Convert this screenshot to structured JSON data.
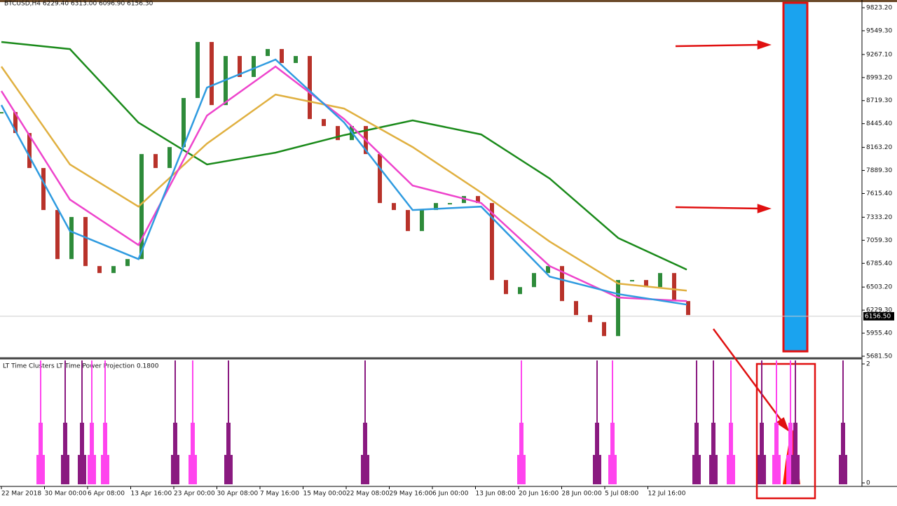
{
  "header": "BTCUSD,H4  6229.40 6313.00 6096.90 6156.30",
  "price_chart": {
    "ylim": [
      5681.5,
      9823.2
    ],
    "yticks": [
      {
        "value": 9823.2,
        "label": "9823.20"
      },
      {
        "value": 9549.3,
        "label": "9549.30"
      },
      {
        "value": 9267.1,
        "label": "9267.10"
      },
      {
        "value": 8993.2,
        "label": "8993.20"
      },
      {
        "value": 8719.3,
        "label": "8719.30"
      },
      {
        "value": 8445.4,
        "label": "8445.40"
      },
      {
        "value": 8163.2,
        "label": "8163.20"
      },
      {
        "value": 7889.3,
        "label": "7889.30"
      },
      {
        "value": 7615.4,
        "label": "7615.40"
      },
      {
        "value": 7333.2,
        "label": "7333.20"
      },
      {
        "value": 7059.3,
        "label": "7059.30"
      },
      {
        "value": 6785.4,
        "label": "6785.40"
      },
      {
        "value": 6503.2,
        "label": "6503.20"
      },
      {
        "value": 6229.3,
        "label": "6229.30"
      },
      {
        "value": 5955.4,
        "label": "5955.40"
      },
      {
        "value": 5681.5,
        "label": "5681.50"
      }
    ],
    "current_price": {
      "value": 6156.5,
      "label": "6156.50"
    },
    "candle_colors": {
      "up": "#2e8b3a",
      "down": "#b8322a"
    },
    "closes": [
      8583,
      8334,
      7918,
      7419,
      6836,
      7336,
      6753,
      6670,
      6753,
      6836,
      8084,
      7918,
      8167,
      8750,
      9416,
      8666,
      9249,
      9000,
      9249,
      9332,
      9166,
      9249,
      8500,
      8417,
      8250,
      8417,
      8084,
      7502,
      7419,
      7169,
      7419,
      7502,
      7502,
      7585,
      7502,
      6587,
      6420,
      6503,
      6670,
      6753,
      6337,
      6171,
      6087,
      5921,
      6587,
      6587,
      6503,
      6670,
      6337,
      6171
    ],
    "moving_averages": [
      {
        "color": "#1a8a1a",
        "values": [
          9416,
          9332,
          8458,
          7960,
          8101,
          8309,
          8484,
          8317,
          7793,
          7086,
          6711
        ]
      },
      {
        "color": "#e0b040",
        "values": [
          9124,
          7960,
          7460,
          8209,
          8791,
          8625,
          8167,
          7627,
          7044,
          6545,
          6462
        ]
      },
      {
        "color": "#ee44cc",
        "values": [
          8833,
          7543,
          7003,
          8542,
          9124,
          8500,
          7710,
          7502,
          6753,
          6379,
          6337
        ]
      },
      {
        "color": "#2f9be0",
        "values": [
          8666,
          7169,
          6836,
          8874,
          9207,
          8459,
          7419,
          7460,
          6628,
          6420,
          6295
        ]
      }
    ]
  },
  "indicator": {
    "label": "LT Time Clusters  LT Time Power Projection 0.1800",
    "ylim": [
      0,
      2
    ],
    "yticks": [
      2,
      0
    ]
  },
  "time_axis": [
    "22 Mar 2018",
    "30 Mar 00:00",
    "6 Apr 08:00",
    "13 Apr 16:00",
    "23 Apr 00:00",
    "30 Apr 08:00",
    "7 May 16:00",
    "15 May 00:00",
    "22 May 08:00",
    "29 May 16:00",
    "6 Jun 00:00",
    "13 Jun 08:00",
    "20 Jun 16:00",
    "28 Jun 00:00",
    "5 Jul 08:00",
    "12 Jul 16:00"
  ]
}
